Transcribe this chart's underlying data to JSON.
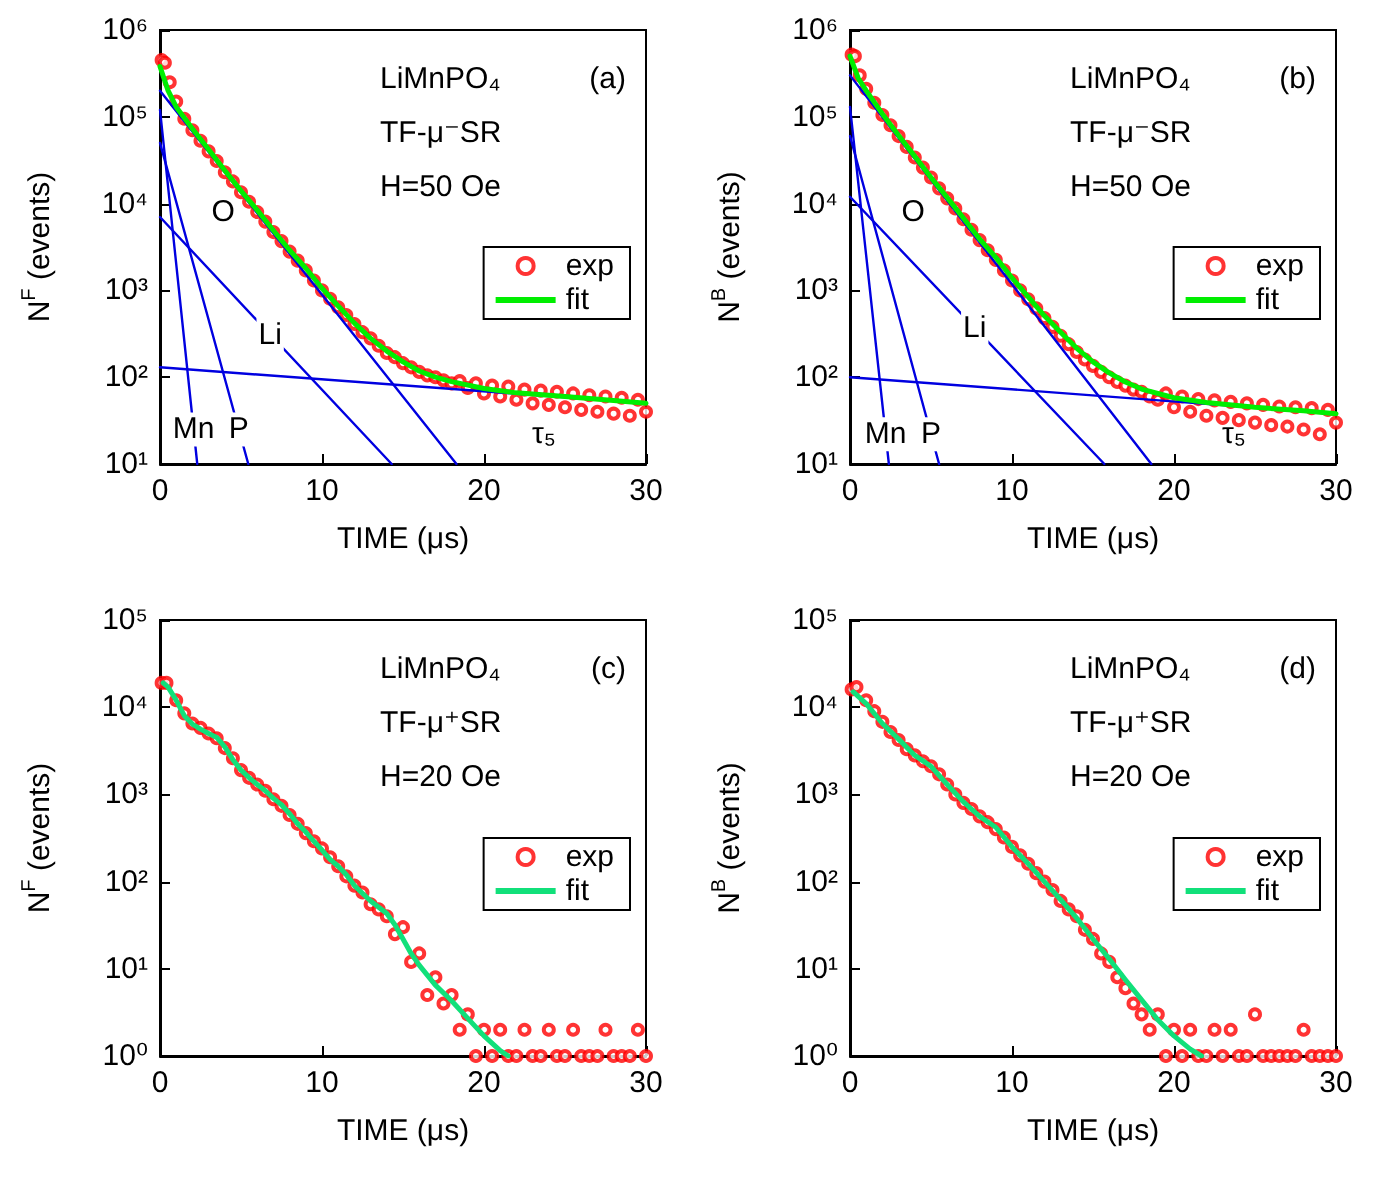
{
  "chart_data": [
    {
      "type": "scatter",
      "xlabel": "TIME (μs)",
      "ylabel": "N$^{F}$ (events)",
      "xlim": [
        0,
        30
      ],
      "xticks": [
        0,
        10,
        20,
        30
      ],
      "ylim": [
        10,
        1000000
      ],
      "yticks": [
        {
          "value": 10,
          "label": "10¹"
        },
        {
          "value": 100,
          "label": "10²"
        },
        {
          "value": 1000,
          "label": "10³"
        },
        {
          "value": 10000,
          "label": "10⁴"
        },
        {
          "value": 100000,
          "label": "10⁵"
        },
        {
          "value": 1000000,
          "label": "10⁶"
        }
      ],
      "log": "y",
      "legend": "right",
      "annotations": [
        "LiMnPO₄",
        "(a)",
        "TF-μ⁻SR",
        "H=50 Oe",
        "O",
        "τ₅",
        {
          "text": "Li",
          "x": 6.8,
          "y": 310
        },
        {
          "text": "Mn",
          "x": 2.07,
          "y": 25
        },
        {
          "text": "P",
          "x": 4.86,
          "y": 25
        }
      ],
      "series": [
        {
          "name": "exp",
          "type": "scatter",
          "marker": "circle",
          "color": "#ff0000",
          "x": [
            0.1,
            0.3,
            0.6,
            1,
            1.5,
            2,
            2.5,
            3,
            3.5,
            4,
            4.5,
            5,
            5.5,
            6,
            6.5,
            7,
            7.5,
            8,
            8.5,
            9,
            9.5,
            10,
            10.5,
            11,
            11.5,
            12,
            12.5,
            13,
            13.5,
            14,
            14.5,
            15,
            15.5,
            16,
            16.5,
            17,
            17.5,
            18,
            18.5,
            19,
            19.5,
            20,
            20.5,
            21,
            21.5,
            22,
            22.5,
            23,
            23.5,
            24,
            24.5,
            25,
            25.5,
            26,
            26.5,
            27,
            27.5,
            28,
            28.5,
            29,
            29.5,
            30
          ],
          "values": [
            450000,
            420000,
            250000,
            150000,
            95000,
            70000,
            53000,
            40000,
            31000,
            23000,
            18000,
            13500,
            10500,
            8000,
            6200,
            4700,
            3700,
            2800,
            2200,
            1700,
            1300,
            1000,
            800,
            640,
            520,
            410,
            330,
            280,
            230,
            190,
            170,
            145,
            130,
            115,
            105,
            100,
            92,
            85,
            90,
            75,
            85,
            65,
            80,
            60,
            78,
            55,
            72,
            50,
            70,
            48,
            68,
            45,
            65,
            42,
            62,
            40,
            60,
            38,
            58,
            36,
            55,
            40
          ]
        },
        {
          "type": "line",
          "marker": "none",
          "line_style": "solid",
          "color": "#0000e0",
          "x": [
            0,
            18.3
          ],
          "values": [
            200000,
            10
          ]
        },
        {
          "type": "line",
          "marker": "none",
          "line_style": "solid",
          "color": "#0000e0",
          "x": [
            0,
            14.3
          ],
          "values": [
            7000,
            10
          ]
        },
        {
          "type": "line",
          "marker": "none",
          "line_style": "solid",
          "color": "#0000e0",
          "x": [
            0,
            2.3
          ],
          "values": [
            120000,
            10
          ]
        },
        {
          "type": "line",
          "marker": "none",
          "line_style": "solid",
          "color": "#0000e0",
          "x": [
            0,
            5.45
          ],
          "values": [
            50000,
            10
          ]
        },
        {
          "type": "line",
          "marker": "none",
          "line_style": "solid",
          "color": "#0000e0",
          "x": [
            0,
            30
          ],
          "values": [
            130,
            50
          ]
        },
        {
          "name": "fit",
          "type": "line",
          "marker": "none",
          "line_style": "solid",
          "color": "#00ee00",
          "x": [
            0,
            0.5,
            1,
            2,
            3,
            4,
            5,
            6,
            7,
            8,
            9,
            10,
            11,
            12,
            13,
            14,
            15,
            16,
            17,
            18,
            20,
            22,
            25,
            28,
            30
          ],
          "values": [
            380000,
            200000,
            130000,
            73000,
            42000,
            24000,
            14000,
            8400,
            4900,
            2900,
            1800,
            1060,
            660,
            420,
            280,
            200,
            150,
            118,
            100,
            89,
            74,
            66,
            60,
            54,
            50
          ]
        }
      ]
    },
    {
      "type": "scatter",
      "xlabel": "TIME (μs)",
      "ylabel": "N$^{B}$ (events)",
      "xlim": [
        0,
        30
      ],
      "xticks": [
        0,
        10,
        20,
        30
      ],
      "ylim": [
        10,
        1000000
      ],
      "yticks": [
        {
          "value": 10,
          "label": "10¹"
        },
        {
          "value": 100,
          "label": "10²"
        },
        {
          "value": 1000,
          "label": "10³"
        },
        {
          "value": 10000,
          "label": "10⁴"
        },
        {
          "value": 100000,
          "label": "10⁵"
        },
        {
          "value": 1000000,
          "label": "10⁶"
        }
      ],
      "log": "y",
      "legend": "right",
      "annotations": [
        "LiMnPO₄",
        "(b)",
        "TF-μ⁻SR",
        "H=50 Oe",
        "O",
        "τ₅",
        {
          "text": "Li",
          "x": 7.7,
          "y": 370
        },
        {
          "text": "Mn",
          "x": 2.2,
          "y": 22
        },
        {
          "text": "P",
          "x": 5.0,
          "y": 22
        }
      ],
      "series": [
        {
          "name": "exp",
          "type": "scatter",
          "marker": "circle",
          "color": "#ff0000",
          "x": [
            0.1,
            0.3,
            0.6,
            1,
            1.5,
            2,
            2.5,
            3,
            3.5,
            4,
            4.5,
            5,
            5.5,
            6,
            6.5,
            7,
            7.5,
            8,
            8.5,
            9,
            9.5,
            10,
            10.5,
            11,
            11.5,
            12,
            12.5,
            13,
            13.5,
            14,
            14.5,
            15,
            15.5,
            16,
            16.5,
            17,
            17.5,
            18,
            18.5,
            19,
            19.5,
            20,
            20.5,
            21,
            21.5,
            22,
            22.5,
            23,
            23.5,
            24,
            24.5,
            25,
            25.5,
            26,
            26.5,
            27,
            27.5,
            28,
            28.5,
            29,
            29.5,
            30
          ],
          "values": [
            520000,
            500000,
            300000,
            210000,
            145000,
            105000,
            80000,
            60000,
            45000,
            34000,
            26000,
            20000,
            15000,
            11500,
            8800,
            6600,
            5000,
            3800,
            2900,
            2250,
            1700,
            1300,
            1000,
            790,
            620,
            480,
            380,
            300,
            240,
            195,
            160,
            135,
            115,
            100,
            88,
            80,
            72,
            68,
            60,
            55,
            65,
            45,
            60,
            40,
            56,
            36,
            54,
            34,
            52,
            32,
            50,
            30,
            48,
            28,
            46,
            27,
            45,
            25,
            44,
            22,
            42,
            30
          ]
        },
        {
          "type": "line",
          "marker": "none",
          "line_style": "solid",
          "color": "#0000e0",
          "x": [
            0,
            18.6
          ],
          "values": [
            300000,
            10
          ]
        },
        {
          "type": "line",
          "marker": "none",
          "line_style": "solid",
          "color": "#0000e0",
          "x": [
            0,
            15.7
          ],
          "values": [
            12000,
            10
          ]
        },
        {
          "type": "line",
          "marker": "none",
          "line_style": "solid",
          "color": "#0000e0",
          "x": [
            0,
            2.4
          ],
          "values": [
            130000,
            10
          ]
        },
        {
          "type": "line",
          "marker": "none",
          "line_style": "solid",
          "color": "#0000e0",
          "x": [
            0,
            5.5
          ],
          "values": [
            60000,
            10
          ]
        },
        {
          "type": "line",
          "marker": "none",
          "line_style": "solid",
          "color": "#0000e0",
          "x": [
            0,
            30
          ],
          "values": [
            100,
            38
          ]
        },
        {
          "name": "fit",
          "type": "line",
          "marker": "none",
          "line_style": "solid",
          "color": "#00ee00",
          "x": [
            0,
            0.5,
            1,
            2,
            3,
            4,
            5,
            6,
            7,
            8,
            9,
            10,
            11,
            12,
            13,
            14,
            15,
            16,
            17,
            18,
            20,
            22,
            25,
            28,
            30
          ],
          "values": [
            500000,
            280000,
            200000,
            108000,
            61000,
            35000,
            20000,
            11700,
            6800,
            3900,
            2400,
            1390,
            840,
            510,
            330,
            215,
            150,
            112,
            88,
            73,
            58,
            51,
            45,
            41,
            38
          ]
        }
      ]
    },
    {
      "type": "scatter",
      "xlabel": "TIME (μs)",
      "ylabel": "N$^{F}$ (events)",
      "xlim": [
        0,
        30
      ],
      "xticks": [
        0,
        10,
        20,
        30
      ],
      "ylim": [
        1,
        100000
      ],
      "yticks": [
        {
          "value": 1,
          "label": "10⁰"
        },
        {
          "value": 10,
          "label": "10¹"
        },
        {
          "value": 100,
          "label": "10²"
        },
        {
          "value": 1000,
          "label": "10³"
        },
        {
          "value": 10000,
          "label": "10⁴"
        },
        {
          "value": 100000,
          "label": "10⁵"
        }
      ],
      "log": "y",
      "legend": "right",
      "annotations": [
        "LiMnPO₄",
        "(c)",
        "TF-μ⁺SR",
        "H=20 Oe"
      ],
      "series": [
        {
          "name": "exp",
          "type": "scatter",
          "marker": "circle",
          "color": "#ff0000",
          "x": [
            0.1,
            0.4,
            1,
            1.5,
            2,
            2.5,
            3,
            3.5,
            4,
            4.5,
            5,
            5.5,
            6,
            6.5,
            7,
            7.5,
            8,
            8.5,
            9,
            9.5,
            10,
            10.5,
            11,
            11.5,
            12,
            12.5,
            13,
            13.5,
            14,
            14.5,
            15,
            15.5,
            16,
            16.5,
            17,
            17.5,
            18,
            18.5,
            19,
            19.5,
            20,
            20.5,
            21,
            21.5,
            22,
            22.5,
            23,
            23.5,
            24,
            24.5,
            25,
            25.5,
            26,
            26.5,
            27,
            27.5,
            28,
            28.5,
            29,
            29.5,
            30
          ],
          "values": [
            19000,
            19000,
            12000,
            8500,
            6500,
            5800,
            5000,
            4400,
            3400,
            2600,
            1900,
            1550,
            1300,
            1100,
            880,
            740,
            580,
            460,
            360,
            290,
            240,
            190,
            150,
            115,
            90,
            75,
            55,
            48,
            40,
            25,
            30,
            12,
            15,
            5,
            8,
            4,
            5,
            2,
            3,
            1,
            2,
            1,
            2,
            1,
            1,
            2,
            1,
            1,
            2,
            1,
            1,
            2,
            1,
            1,
            1,
            2,
            1,
            1,
            1,
            2,
            1
          ]
        },
        {
          "name": "fit",
          "type": "line",
          "marker": "none",
          "line_style": "solid",
          "color": "#11e07a",
          "x": [
            0.2,
            0.5,
            1,
            1.5,
            2,
            2.5,
            3,
            3.5,
            4,
            4.5,
            5,
            5.6,
            6,
            6.5,
            7,
            7.5,
            8,
            8.5,
            9,
            9.5,
            10,
            10.5,
            11,
            11.5,
            12,
            13,
            14,
            14.5,
            15,
            15.5,
            16,
            17,
            18,
            19,
            20,
            21,
            21.5
          ],
          "values": [
            19000,
            17000,
            12000,
            8000,
            6400,
            5600,
            5000,
            4500,
            3500,
            2500,
            1900,
            1500,
            1300,
            1100,
            900,
            760,
            600,
            460,
            370,
            290,
            230,
            180,
            150,
            120,
            90,
            60,
            43,
            32,
            22,
            15,
            11,
            6.5,
            4.3,
            2.7,
            1.7,
            1.15,
            1
          ]
        }
      ]
    },
    {
      "type": "scatter",
      "xlabel": "TIME (μs)",
      "ylabel": "N$^{B}$ (events)",
      "xlim": [
        0,
        30
      ],
      "xticks": [
        0,
        10,
        20,
        30
      ],
      "ylim": [
        1,
        100000
      ],
      "yticks": [
        {
          "value": 1,
          "label": "10⁰"
        },
        {
          "value": 10,
          "label": "10¹"
        },
        {
          "value": 100,
          "label": "10²"
        },
        {
          "value": 1000,
          "label": "10³"
        },
        {
          "value": 10000,
          "label": "10⁴"
        },
        {
          "value": 100000,
          "label": "10⁵"
        }
      ],
      "log": "y",
      "legend": "right",
      "annotations": [
        "LiMnPO₄",
        "(d)",
        "TF-μ⁺SR",
        "H=20 Oe"
      ],
      "series": [
        {
          "name": "exp",
          "type": "scatter",
          "marker": "circle",
          "color": "#ff0000",
          "x": [
            0.1,
            0.4,
            1,
            1.5,
            2,
            2.5,
            3,
            3.5,
            4,
            4.5,
            5,
            5.5,
            6,
            6.5,
            7,
            7.5,
            8,
            8.5,
            9,
            9.5,
            10,
            10.5,
            11,
            11.5,
            12,
            12.5,
            13,
            13.5,
            14,
            14.5,
            15,
            15.5,
            16,
            16.5,
            17,
            17.5,
            18,
            18.5,
            19,
            19.5,
            20,
            20.5,
            21,
            21.5,
            22,
            22.5,
            23,
            23.5,
            24,
            24.5,
            25,
            25.5,
            26,
            26.5,
            27,
            27.5,
            28,
            28.5,
            29,
            29.5,
            30
          ],
          "values": [
            16000,
            17000,
            12000,
            9000,
            6800,
            5200,
            4200,
            3300,
            2800,
            2400,
            2100,
            1700,
            1300,
            1000,
            800,
            680,
            560,
            480,
            400,
            320,
            250,
            200,
            160,
            125,
            100,
            80,
            60,
            48,
            40,
            28,
            22,
            15,
            12,
            8,
            6,
            4,
            3,
            2,
            3,
            1,
            2,
            1,
            2,
            1,
            1,
            2,
            1,
            2,
            1,
            1,
            3,
            1,
            1,
            1,
            1,
            1,
            2,
            1,
            1,
            1,
            1
          ]
        },
        {
          "name": "fit",
          "type": "line",
          "marker": "none",
          "line_style": "solid",
          "color": "#11e07a",
          "x": [
            0.2,
            1,
            2,
            3,
            4,
            5,
            6,
            7,
            8,
            9,
            10,
            11,
            12,
            13,
            14,
            15,
            16,
            17,
            18,
            19,
            20,
            21,
            21.7
          ],
          "values": [
            15000,
            11000,
            6500,
            4300,
            2800,
            2100,
            1300,
            820,
            560,
            420,
            250,
            160,
            100,
            62,
            38,
            22,
            13,
            7.5,
            4.4,
            2.6,
            1.7,
            1.2,
            1
          ]
        }
      ]
    }
  ]
}
